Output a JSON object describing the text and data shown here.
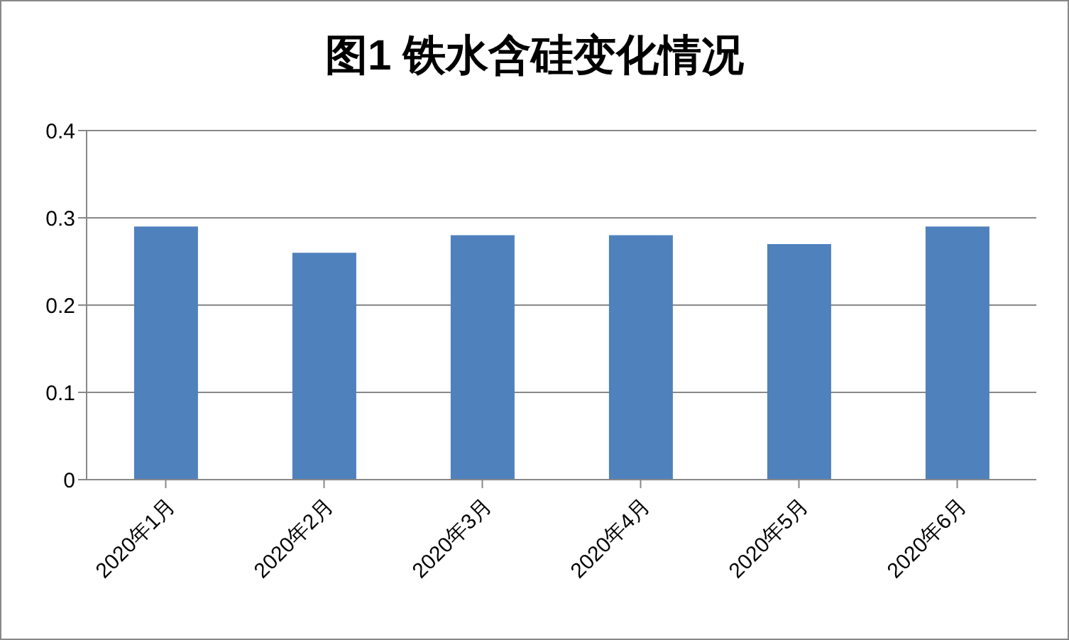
{
  "chart_data": {
    "type": "bar",
    "title": "图1  铁水含硅变化情况",
    "categories": [
      "2020年1月",
      "2020年2月",
      "2020年3月",
      "2020年4月",
      "2020年5月",
      "2020年6月"
    ],
    "values": [
      0.29,
      0.26,
      0.28,
      0.28,
      0.27,
      0.29
    ],
    "color": "#4f81bd",
    "ylim": [
      0,
      0.4
    ],
    "yticks": [
      0,
      0.1,
      0.2,
      0.3,
      0.4
    ],
    "grid": "y"
  }
}
